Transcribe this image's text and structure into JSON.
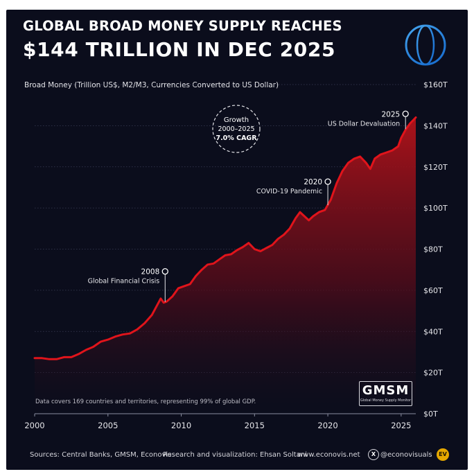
{
  "header": {
    "title_line1": "GLOBAL BROAD MONEY SUPPLY REACHES",
    "title_line2": "$144 TRILLION IN DEC 2025"
  },
  "chart_data": {
    "type": "area",
    "ylabel": "Broad Money (Trillion US$, M2/M3, Currencies Converted to US Dollar)",
    "xlim": [
      2000,
      2026
    ],
    "ylim": [
      0,
      160
    ],
    "x_ticks": [
      2000,
      2005,
      2010,
      2015,
      2020,
      2025
    ],
    "y_ticks": [
      {
        "value": 0,
        "label": "$0T"
      },
      {
        "value": 20,
        "label": "$20T"
      },
      {
        "value": 40,
        "label": "$40T"
      },
      {
        "value": 60,
        "label": "$60T"
      },
      {
        "value": 80,
        "label": "$80T"
      },
      {
        "value": 100,
        "label": "$100T"
      },
      {
        "value": 120,
        "label": "$120T"
      },
      {
        "value": 140,
        "label": "$140T"
      },
      {
        "value": 160,
        "label": "$160T"
      }
    ],
    "grid": "horizontal dotted",
    "series": [
      {
        "color": "#e0141b",
        "points": [
          [
            2000.0,
            27
          ],
          [
            2000.5,
            27
          ],
          [
            2001.0,
            26.5
          ],
          [
            2001.5,
            26.5
          ],
          [
            2002.0,
            27.5
          ],
          [
            2002.5,
            27.5
          ],
          [
            2003.0,
            29
          ],
          [
            2003.5,
            31
          ],
          [
            2004.0,
            32.5
          ],
          [
            2004.5,
            35
          ],
          [
            2005.0,
            36
          ],
          [
            2005.5,
            37.5
          ],
          [
            2006.0,
            38.5
          ],
          [
            2006.5,
            39
          ],
          [
            2007.0,
            41
          ],
          [
            2007.5,
            44
          ],
          [
            2008.0,
            48
          ],
          [
            2008.3,
            52
          ],
          [
            2008.6,
            56
          ],
          [
            2008.8,
            54
          ],
          [
            2009.0,
            54.5
          ],
          [
            2009.4,
            57
          ],
          [
            2009.8,
            61
          ],
          [
            2010.2,
            62
          ],
          [
            2010.6,
            63
          ],
          [
            2011.0,
            67
          ],
          [
            2011.4,
            70
          ],
          [
            2011.8,
            72.5
          ],
          [
            2012.2,
            73
          ],
          [
            2012.6,
            75
          ],
          [
            2013.0,
            77
          ],
          [
            2013.4,
            77.5
          ],
          [
            2013.8,
            79.5
          ],
          [
            2014.2,
            81
          ],
          [
            2014.6,
            83
          ],
          [
            2015.0,
            80
          ],
          [
            2015.4,
            79
          ],
          [
            2015.8,
            80.5
          ],
          [
            2016.2,
            82
          ],
          [
            2016.6,
            85
          ],
          [
            2017.0,
            87
          ],
          [
            2017.4,
            90
          ],
          [
            2017.8,
            95
          ],
          [
            2018.1,
            98
          ],
          [
            2018.4,
            96
          ],
          [
            2018.7,
            94
          ],
          [
            2019.0,
            96
          ],
          [
            2019.4,
            98
          ],
          [
            2019.8,
            99
          ],
          [
            2020.2,
            104
          ],
          [
            2020.6,
            112
          ],
          [
            2021.0,
            118
          ],
          [
            2021.4,
            122
          ],
          [
            2021.8,
            124
          ],
          [
            2022.2,
            125
          ],
          [
            2022.6,
            122
          ],
          [
            2022.9,
            119
          ],
          [
            2023.2,
            124
          ],
          [
            2023.6,
            126
          ],
          [
            2024.0,
            127
          ],
          [
            2024.4,
            128
          ],
          [
            2024.8,
            130
          ],
          [
            2025.0,
            134
          ],
          [
            2025.3,
            138
          ],
          [
            2025.6,
            141
          ],
          [
            2026.0,
            144
          ]
        ]
      }
    ],
    "annotations": [
      {
        "year_label": "2008",
        "text": "Global Financial Crisis",
        "x": 2008.9,
        "y": 53
      },
      {
        "year_label": "2020",
        "text": "COVID-19 Pandemic",
        "x": 2020.0,
        "y": 100
      },
      {
        "year_label": "2025",
        "text": "US Dollar Devaluation",
        "x": 2025.3,
        "y": 137
      }
    ],
    "growth_badge": {
      "line1": "Growth",
      "line2": "2000–2025",
      "line3": "7.0% CAGR"
    }
  },
  "note": "Data covers 169 countries and territories, representing 99% of global GDP.",
  "logo": {
    "name": "GMSM",
    "subtitle": "Global Money Supply Monitor"
  },
  "footer": {
    "sources": "Sources: Central Banks, GMSM, Econovis",
    "credit": "Research and visualization: Ehsan Soltani",
    "website": "www.econovis.net",
    "twitter": "@econovisuals",
    "x_icon": "X",
    "ev_logo": "EV"
  },
  "colors": {
    "background": "#0b0d1c",
    "line": "#e0141b",
    "text": "#ffffff"
  }
}
